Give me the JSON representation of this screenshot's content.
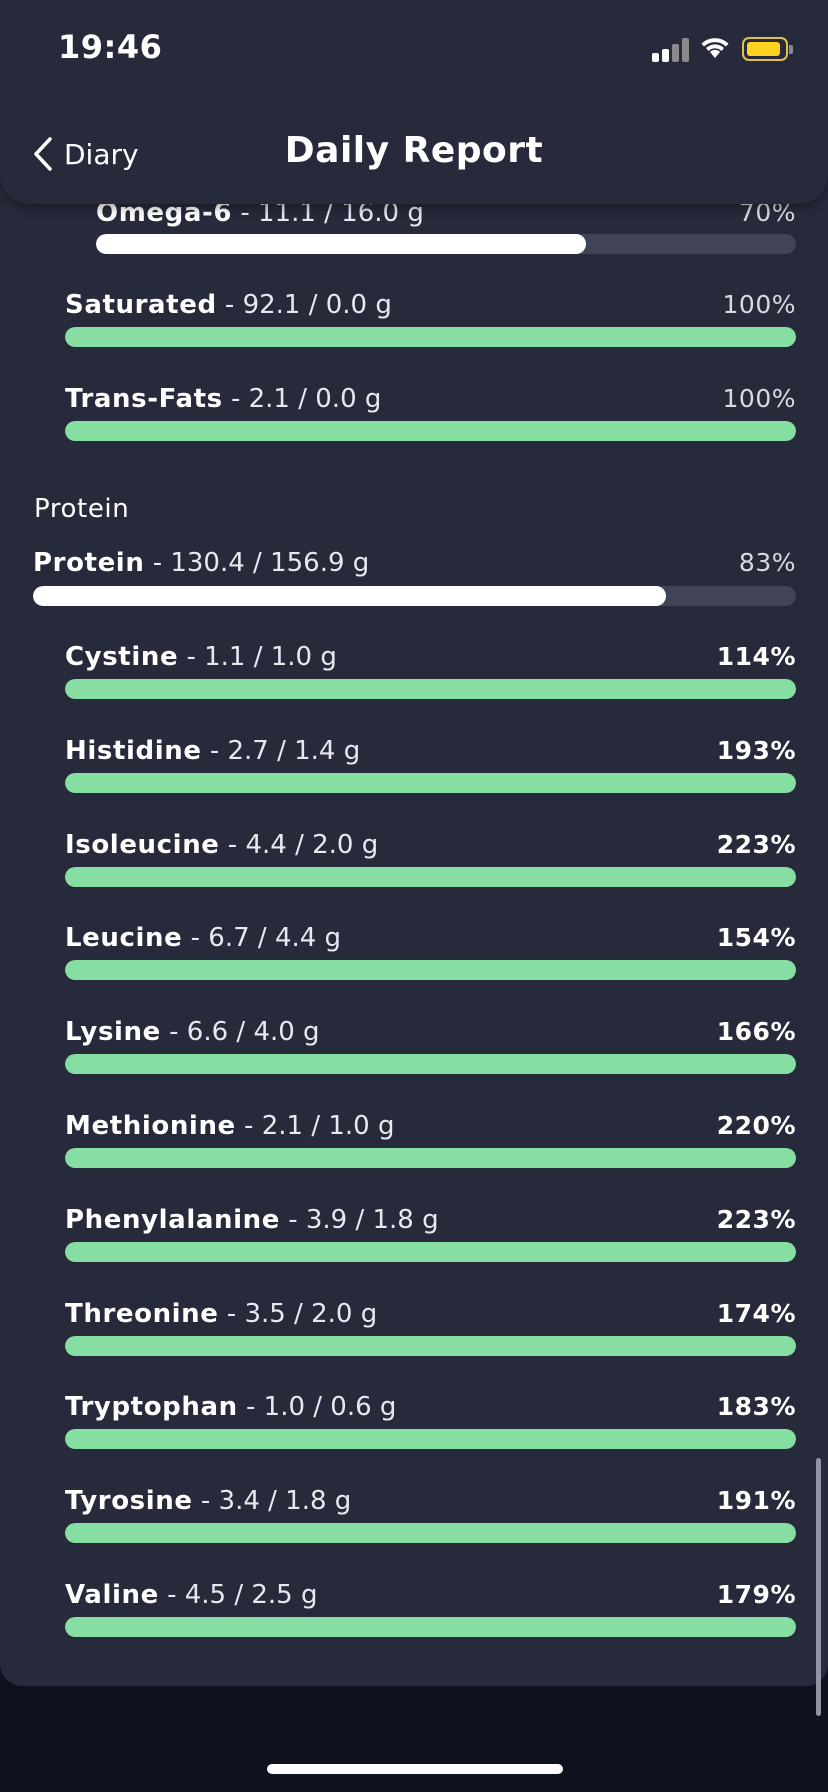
{
  "status_bar": {
    "time": "19:46"
  },
  "nav": {
    "back_label": "Diary",
    "title": "Daily Report"
  },
  "fats": [
    {
      "name": "Omega-6",
      "amount": " - 11.1 / 16.0 g",
      "pct_label": "70%",
      "progress": 0.7
    },
    {
      "name": "Saturated",
      "amount": " - 92.1 / 0.0 g",
      "pct_label": "100%",
      "progress": 1.0
    },
    {
      "name": "Trans-Fats",
      "amount": " - 2.1 / 0.0 g",
      "pct_label": "100%",
      "progress": 1.0
    }
  ],
  "protein_section": {
    "title": "Protein",
    "total": {
      "name": "Protein",
      "amount": " - 130.4 / 156.9 g",
      "pct_label": "83%",
      "progress": 0.83
    },
    "amino_acids": [
      {
        "name": "Cystine",
        "amount": " - 1.1 / 1.0 g",
        "pct_label": "114%",
        "progress": 1.0
      },
      {
        "name": "Histidine",
        "amount": " - 2.7 / 1.4 g",
        "pct_label": "193%",
        "progress": 1.0
      },
      {
        "name": "Isoleucine",
        "amount": " - 4.4 / 2.0 g",
        "pct_label": "223%",
        "progress": 1.0
      },
      {
        "name": "Leucine",
        "amount": " - 6.7 / 4.4 g",
        "pct_label": "154%",
        "progress": 1.0
      },
      {
        "name": "Lysine",
        "amount": " - 6.6 / 4.0 g",
        "pct_label": "166%",
        "progress": 1.0
      },
      {
        "name": "Methionine",
        "amount": " - 2.1 / 1.0 g",
        "pct_label": "220%",
        "progress": 1.0
      },
      {
        "name": "Phenylalanine",
        "amount": " - 3.9 / 1.8 g",
        "pct_label": "223%",
        "progress": 1.0
      },
      {
        "name": "Threonine",
        "amount": " - 3.5 / 2.0 g",
        "pct_label": "174%",
        "progress": 1.0
      },
      {
        "name": "Tryptophan",
        "amount": " - 1.0 / 0.6 g",
        "pct_label": "183%",
        "progress": 1.0
      },
      {
        "name": "Tyrosine",
        "amount": " - 3.4 / 1.8 g",
        "pct_label": "191%",
        "progress": 1.0
      },
      {
        "name": "Valine",
        "amount": " - 4.5 / 2.5 g",
        "pct_label": "179%",
        "progress": 1.0
      }
    ]
  },
  "colors": {
    "background": "#0f111f",
    "card": "#272a3b",
    "track": "#414456",
    "bar_partial": "#ffffff",
    "bar_met": "#86dea3"
  }
}
